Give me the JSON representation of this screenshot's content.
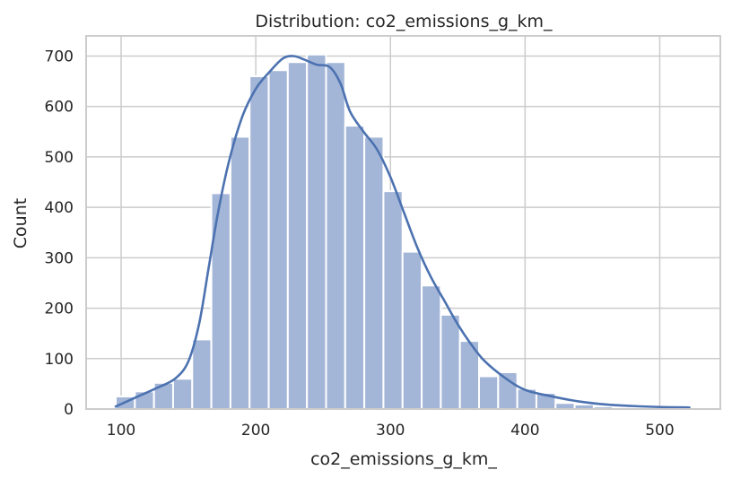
{
  "chart_data": {
    "type": "bar",
    "title": "Distribution: co2_emissions_g_km_",
    "xlabel": "co2_emissions_g_km_",
    "ylabel": "Count",
    "xlim": [
      74,
      545
    ],
    "ylim": [
      0,
      740
    ],
    "xticks": [
      100,
      200,
      300,
      400,
      500
    ],
    "yticks": [
      0,
      100,
      200,
      300,
      400,
      500,
      600,
      700
    ],
    "grid": true,
    "bin_edges": [
      96,
      110.2,
      124.4,
      138.6,
      152.8,
      167,
      181.2,
      195.4,
      209.6,
      223.8,
      238,
      252.2,
      266.4,
      280.6,
      294.8,
      309,
      323.2,
      337.4,
      351.6,
      365.8,
      380,
      394.2,
      408.4,
      422.6,
      436.8,
      451,
      465.2,
      479.4,
      493.6,
      507.8,
      522
    ],
    "counts": [
      25,
      35,
      52,
      60,
      138,
      428,
      540,
      660,
      672,
      688,
      703,
      688,
      562,
      540,
      432,
      312,
      245,
      187,
      135,
      65,
      73,
      40,
      32,
      12,
      9,
      5,
      2,
      2,
      1,
      1
    ],
    "kde": {
      "x": [
        96,
        110,
        125,
        140,
        150,
        158,
        165,
        172,
        180,
        190,
        200,
        210,
        220,
        228,
        236,
        245,
        255,
        263,
        270,
        280,
        290,
        300,
        310,
        320,
        330,
        340,
        350,
        360,
        370,
        385,
        400,
        420,
        440,
        460,
        480,
        500,
        522
      ],
      "y": [
        5,
        22,
        40,
        60,
        95,
        170,
        280,
        390,
        490,
        580,
        635,
        668,
        695,
        700,
        693,
        683,
        678,
        645,
        590,
        550,
        515,
        460,
        390,
        320,
        262,
        215,
        168,
        128,
        95,
        62,
        38,
        25,
        15,
        9,
        6,
        4,
        3
      ]
    },
    "colors": {
      "bar_fill": "#a4b6d8",
      "bar_edge": "#ffffff",
      "kde_line": "#4c72b0",
      "grid": "#cccccc",
      "frame": "#cccccc"
    }
  }
}
